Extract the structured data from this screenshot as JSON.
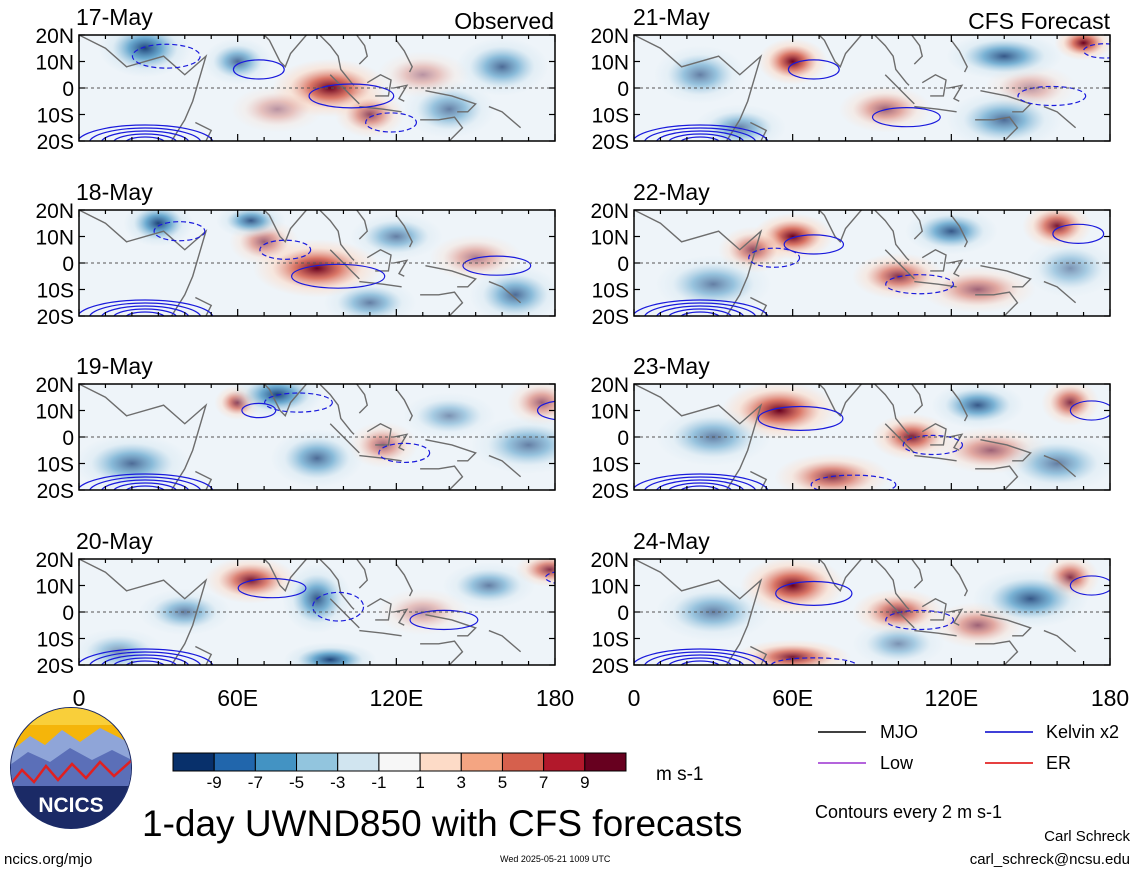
{
  "figure": {
    "title": "1-day UWND850 with CFS forecasts",
    "left_label": "Observed",
    "right_label": "CFS Forecast",
    "site": "ncics.org/mjo",
    "timestamp": "Wed 2025-05-21 1009 UTC",
    "author": "Carl Schreck",
    "email": "carl_schreck@ncsu.edu",
    "logo_text": "NCICS",
    "contour_note": "Contours every 2 m s-1"
  },
  "chart_data": {
    "type": "heatmap",
    "variable": "1-day UWND850",
    "units": "m s-1",
    "x_ticks": [
      "0",
      "60E",
      "120E",
      "180"
    ],
    "x_range": [
      0,
      180
    ],
    "y_ticks": [
      "20N",
      "10N",
      "0",
      "10S",
      "20S"
    ],
    "y_range": [
      -20,
      20
    ],
    "colorbar": {
      "labels": [
        "-9",
        "-7",
        "-5",
        "-3",
        "-1",
        "1",
        "3",
        "5",
        "7",
        "9"
      ],
      "colors": [
        "#08306b",
        "#2166ac",
        "#4393c3",
        "#92c5de",
        "#d1e5f0",
        "#f7f7f7",
        "#fddbc7",
        "#f4a582",
        "#d6604d",
        "#b2182b",
        "#67001f"
      ]
    },
    "legend": [
      {
        "label": "MJO",
        "color": "#000000"
      },
      {
        "label": "Kelvin x2",
        "color": "#0000cc"
      },
      {
        "label": "Low",
        "color": "#9b30d0"
      },
      {
        "label": "ER",
        "color": "#dd0000"
      }
    ],
    "panels": [
      {
        "date": "17-May",
        "source": "Observed",
        "blobs": [
          [
            95,
            0,
            1.0,
            10,
            5
          ],
          [
            110,
            -10,
            0.7,
            6,
            4
          ],
          [
            60,
            10,
            -0.7,
            6,
            4
          ],
          [
            25,
            15,
            -0.9,
            8,
            5
          ],
          [
            160,
            8,
            -0.7,
            8,
            5
          ],
          [
            140,
            -8,
            -0.6,
            8,
            5
          ],
          [
            75,
            -8,
            0.4,
            8,
            4
          ],
          [
            130,
            5,
            0.4,
            8,
            4
          ]
        ]
      },
      {
        "date": "18-May",
        "source": "Observed",
        "blobs": [
          [
            90,
            -2,
            1.0,
            11,
            5
          ],
          [
            70,
            8,
            0.6,
            6,
            4
          ],
          [
            150,
            2,
            0.5,
            8,
            4
          ],
          [
            30,
            15,
            -0.9,
            6,
            4
          ],
          [
            65,
            16,
            -0.8,
            6,
            3
          ],
          [
            120,
            10,
            -0.6,
            8,
            4
          ],
          [
            165,
            -12,
            -0.7,
            8,
            5
          ],
          [
            110,
            -15,
            -0.6,
            8,
            4
          ]
        ]
      },
      {
        "date": "19-May",
        "source": "Observed",
        "blobs": [
          [
            60,
            13,
            0.8,
            4,
            3
          ],
          [
            115,
            -3,
            0.6,
            6,
            4
          ],
          [
            175,
            13,
            0.6,
            6,
            4
          ],
          [
            75,
            16,
            -0.9,
            8,
            4
          ],
          [
            170,
            -3,
            -0.6,
            10,
            5
          ],
          [
            90,
            -8,
            -0.7,
            8,
            5
          ],
          [
            20,
            -10,
            -0.7,
            10,
            5
          ],
          [
            140,
            8,
            -0.5,
            8,
            4
          ]
        ]
      },
      {
        "date": "20-May",
        "source": "Observed",
        "blobs": [
          [
            65,
            12,
            0.9,
            8,
            4
          ],
          [
            178,
            16,
            0.8,
            6,
            3
          ],
          [
            130,
            0,
            0.4,
            8,
            4
          ],
          [
            90,
            5,
            -0.8,
            6,
            6
          ],
          [
            95,
            -18,
            -0.9,
            8,
            3
          ],
          [
            155,
            10,
            -0.6,
            8,
            4
          ],
          [
            40,
            0,
            -0.6,
            8,
            4
          ],
          [
            15,
            -15,
            -0.5,
            8,
            4
          ]
        ]
      },
      {
        "date": "21-May",
        "source": "CFS Forecast",
        "blobs": [
          [
            60,
            10,
            1.0,
            6,
            4
          ],
          [
            170,
            17,
            1.0,
            5,
            3
          ],
          [
            95,
            -8,
            0.6,
            8,
            4
          ],
          [
            150,
            0,
            0.4,
            8,
            4
          ],
          [
            25,
            5,
            -0.6,
            8,
            5
          ],
          [
            140,
            12,
            -0.8,
            10,
            4
          ],
          [
            140,
            -12,
            -0.7,
            10,
            5
          ],
          [
            40,
            -15,
            -0.6,
            8,
            4
          ]
        ]
      },
      {
        "date": "22-May",
        "source": "CFS Forecast",
        "blobs": [
          [
            60,
            10,
            1.0,
            7,
            4
          ],
          [
            45,
            5,
            0.7,
            6,
            4
          ],
          [
            160,
            14,
            0.9,
            6,
            4
          ],
          [
            100,
            -5,
            0.8,
            8,
            4
          ],
          [
            130,
            -10,
            0.6,
            10,
            4
          ],
          [
            120,
            12,
            -0.8,
            8,
            4
          ],
          [
            30,
            -8,
            -0.6,
            10,
            5
          ],
          [
            165,
            -2,
            -0.5,
            8,
            5
          ]
        ]
      },
      {
        "date": "23-May",
        "source": "CFS Forecast",
        "blobs": [
          [
            55,
            10,
            1.0,
            10,
            5
          ],
          [
            105,
            0,
            0.9,
            7,
            4
          ],
          [
            165,
            13,
            0.8,
            5,
            4
          ],
          [
            75,
            -15,
            0.8,
            10,
            4
          ],
          [
            135,
            -5,
            0.6,
            10,
            4
          ],
          [
            30,
            0,
            -0.6,
            10,
            5
          ],
          [
            130,
            12,
            -0.8,
            8,
            4
          ],
          [
            160,
            -10,
            -0.6,
            10,
            5
          ]
        ]
      },
      {
        "date": "24-May",
        "source": "CFS Forecast",
        "blobs": [
          [
            60,
            10,
            1.0,
            9,
            5
          ],
          [
            100,
            0,
            0.8,
            8,
            4
          ],
          [
            165,
            13,
            0.8,
            5,
            4
          ],
          [
            60,
            -17,
            0.9,
            10,
            3
          ],
          [
            130,
            -5,
            0.6,
            8,
            4
          ],
          [
            30,
            0,
            -0.6,
            10,
            5
          ],
          [
            150,
            5,
            -0.8,
            10,
            5
          ],
          [
            100,
            -12,
            -0.5,
            8,
            4
          ]
        ]
      }
    ]
  }
}
